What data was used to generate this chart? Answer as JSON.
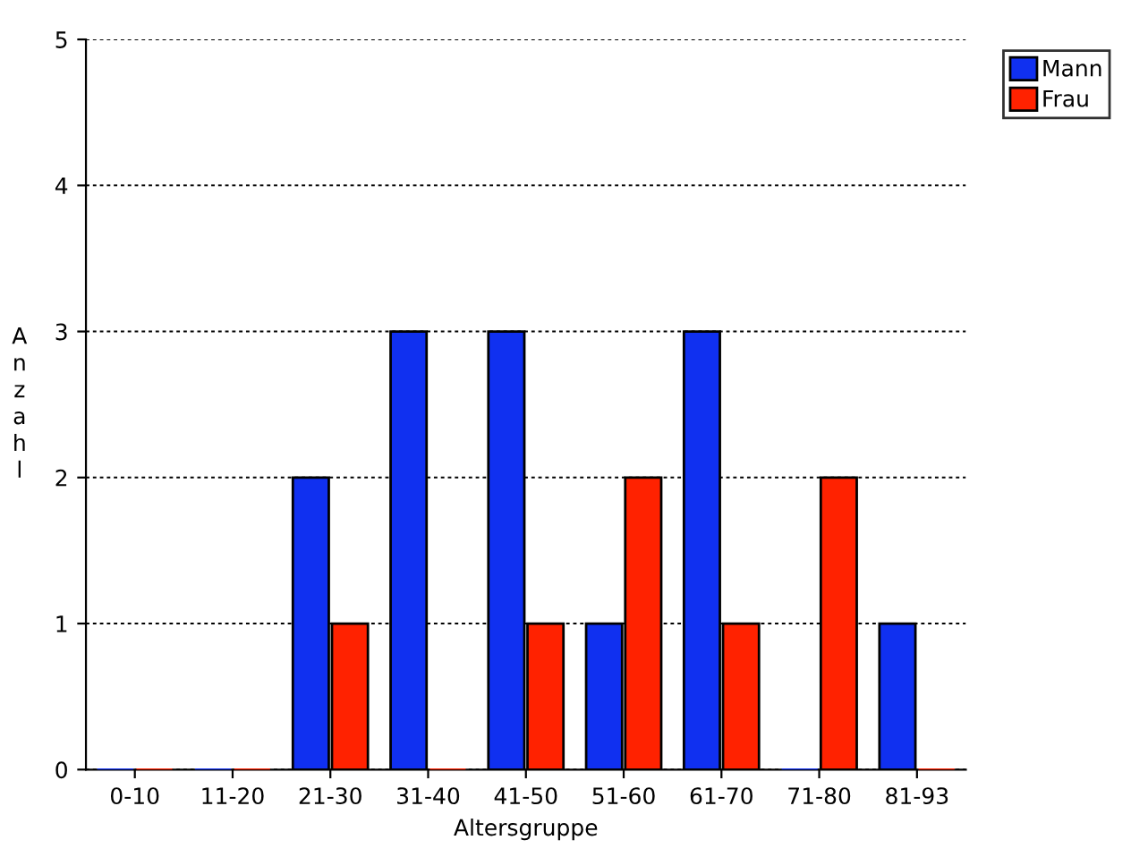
{
  "chart_data": {
    "type": "bar",
    "xlabel": "Altersgruppe",
    "ylabel": "Anzahl",
    "categories": [
      "0-10",
      "11-20",
      "21-30",
      "31-40",
      "41-50",
      "51-60",
      "61-70",
      "71-80",
      "81-93"
    ],
    "series": [
      {
        "name": "Mann",
        "color": "#1030f0",
        "values": [
          0,
          0,
          2,
          3,
          3,
          1,
          3,
          0,
          1
        ]
      },
      {
        "name": "Frau",
        "color": "#ff2200",
        "values": [
          0,
          0,
          1,
          0,
          1,
          2,
          1,
          2,
          0
        ]
      }
    ],
    "ylim": [
      0,
      5
    ],
    "yticks": [
      0,
      1,
      2,
      3,
      4,
      5
    ],
    "grid": "y",
    "legend": "top right"
  }
}
